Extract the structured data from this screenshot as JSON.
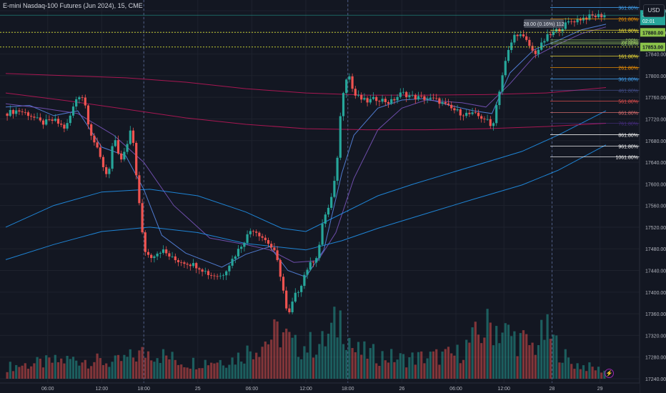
{
  "header": {
    "title": "E-mini Nasdaq-100 Futures (Jun 2024), 15, CME"
  },
  "currency_button": "USD",
  "price_tags": {
    "last_price": "17911.75",
    "countdown": "02:01",
    "line_a": "17880.00",
    "line_b": "17853.00",
    "measure": "28.00 (0.16%) 112"
  },
  "colors": {
    "background": "#131722",
    "grid": "#1e222d",
    "up_candle": "#26a69a",
    "down_candle": "#ef5350",
    "ma_fast": "#5b8def",
    "ma_mid": "#7e57c2",
    "ma_slow_blue": "#2196f3",
    "ma_slow_red": "#c2185b",
    "last_price_tag": "#26a69a",
    "dotted_level": "#c0ca33"
  },
  "chart_data": {
    "type": "candlestick",
    "title": "E-mini Nasdaq-100 Futures (Jun 2024), 15, CME",
    "yaxis": {
      "min": 17240,
      "max": 17920,
      "ticks": [
        17920,
        17880,
        17840,
        17800,
        17760,
        17720,
        17680,
        17640,
        17600,
        17560,
        17520,
        17480,
        17440,
        17400,
        17360,
        17320,
        17280,
        17240
      ]
    },
    "xaxis": {
      "range": [
        0,
        100
      ],
      "ticks": [
        {
          "x": 7,
          "label": "06:00"
        },
        {
          "x": 16,
          "label": "12:00"
        },
        {
          "x": 23,
          "label": "18:00"
        },
        {
          "x": 32,
          "label": "25"
        },
        {
          "x": 41,
          "label": "06:00"
        },
        {
          "x": 50,
          "label": "12:00"
        },
        {
          "x": 57,
          "label": "18:00"
        },
        {
          "x": 66,
          "label": "26"
        },
        {
          "x": 75,
          "label": "06:00"
        },
        {
          "x": 83,
          "label": "12:00"
        },
        {
          "x": 91,
          "label": "28"
        },
        {
          "x": 99,
          "label": "29"
        }
      ],
      "session_breaks": [
        23,
        57,
        91
      ]
    },
    "price_path": [
      [
        0,
        17730
      ],
      [
        2,
        17736
      ],
      [
        4,
        17728
      ],
      [
        6,
        17712
      ],
      [
        8,
        17718
      ],
      [
        10,
        17702
      ],
      [
        12,
        17765
      ],
      [
        13,
        17760
      ],
      [
        14,
        17700
      ],
      [
        16,
        17640
      ],
      [
        17,
        17612
      ],
      [
        18,
        17688
      ],
      [
        19,
        17640
      ],
      [
        20,
        17662
      ],
      [
        21,
        17705
      ],
      [
        22,
        17590
      ],
      [
        23,
        17480
      ],
      [
        24,
        17465
      ],
      [
        26,
        17478
      ],
      [
        28,
        17460
      ],
      [
        30,
        17455
      ],
      [
        32,
        17448
      ],
      [
        34,
        17432
      ],
      [
        36,
        17430
      ],
      [
        38,
        17465
      ],
      [
        40,
        17500
      ],
      [
        41,
        17518
      ],
      [
        42,
        17510
      ],
      [
        44,
        17488
      ],
      [
        45,
        17468
      ],
      [
        46,
        17420
      ],
      [
        47,
        17350
      ],
      [
        48,
        17390
      ],
      [
        49,
        17408
      ],
      [
        50,
        17440
      ],
      [
        52,
        17470
      ],
      [
        53,
        17540
      ],
      [
        54,
        17560
      ],
      [
        55,
        17615
      ],
      [
        56,
        17760
      ],
      [
        57,
        17810
      ],
      [
        58,
        17765
      ],
      [
        60,
        17752
      ],
      [
        62,
        17758
      ],
      [
        64,
        17750
      ],
      [
        66,
        17768
      ],
      [
        68,
        17760
      ],
      [
        70,
        17758
      ],
      [
        72,
        17754
      ],
      [
        74,
        17740
      ],
      [
        76,
        17730
      ],
      [
        78,
        17728
      ],
      [
        80,
        17720
      ],
      [
        81,
        17702
      ],
      [
        82,
        17760
      ],
      [
        83,
        17815
      ],
      [
        84,
        17855
      ],
      [
        85,
        17880
      ],
      [
        86,
        17872
      ],
      [
        87,
        17860
      ],
      [
        88,
        17840
      ],
      [
        89,
        17852
      ],
      [
        90,
        17870
      ],
      [
        92,
        17885
      ],
      [
        94,
        17900
      ],
      [
        96,
        17906
      ],
      [
        98,
        17910
      ],
      [
        100,
        17912
      ]
    ],
    "volume_path": [
      [
        0,
        0.15
      ],
      [
        12,
        0.25
      ],
      [
        18,
        0.2
      ],
      [
        24,
        0.35
      ],
      [
        30,
        0.2
      ],
      [
        38,
        0.25
      ],
      [
        46,
        0.6
      ],
      [
        48,
        0.4
      ],
      [
        53,
        0.45
      ],
      [
        56,
        0.8
      ],
      [
        58,
        0.35
      ],
      [
        66,
        0.25
      ],
      [
        75,
        0.3
      ],
      [
        81,
        0.7
      ],
      [
        84,
        0.55
      ],
      [
        88,
        0.4
      ],
      [
        90,
        0.6
      ],
      [
        94,
        0.2
      ],
      [
        100,
        0.1
      ]
    ],
    "series": [
      {
        "name": "",
        "color": "#5b8def",
        "points": [
          [
            0,
            17742
          ],
          [
            4,
            17745
          ],
          [
            8,
            17726
          ],
          [
            12,
            17735
          ],
          [
            16,
            17668
          ],
          [
            20,
            17652
          ],
          [
            23,
            17590
          ],
          [
            26,
            17505
          ],
          [
            30,
            17472
          ],
          [
            36,
            17446
          ],
          [
            40,
            17470
          ],
          [
            44,
            17484
          ],
          [
            47,
            17440
          ],
          [
            50,
            17428
          ],
          [
            53,
            17478
          ],
          [
            56,
            17620
          ],
          [
            58,
            17690
          ],
          [
            62,
            17740
          ],
          [
            66,
            17755
          ],
          [
            70,
            17758
          ],
          [
            74,
            17745
          ],
          [
            78,
            17735
          ],
          [
            81,
            17730
          ],
          [
            84,
            17805
          ],
          [
            88,
            17848
          ],
          [
            92,
            17865
          ],
          [
            96,
            17885
          ],
          [
            100,
            17895
          ]
        ]
      },
      {
        "name": "",
        "color": "#7e57c2",
        "points": [
          [
            0,
            17748
          ],
          [
            6,
            17740
          ],
          [
            12,
            17730
          ],
          [
            18,
            17690
          ],
          [
            23,
            17640
          ],
          [
            28,
            17560
          ],
          [
            34,
            17500
          ],
          [
            40,
            17488
          ],
          [
            44,
            17478
          ],
          [
            48,
            17455
          ],
          [
            52,
            17458
          ],
          [
            55,
            17510
          ],
          [
            58,
            17610
          ],
          [
            62,
            17700
          ],
          [
            66,
            17740
          ],
          [
            70,
            17755
          ],
          [
            76,
            17750
          ],
          [
            80,
            17742
          ],
          [
            84,
            17785
          ],
          [
            88,
            17835
          ],
          [
            92,
            17858
          ],
          [
            96,
            17878
          ],
          [
            100,
            17890
          ]
        ]
      },
      {
        "name": "",
        "color": "#2196f3",
        "points": [
          [
            0,
            17520
          ],
          [
            8,
            17560
          ],
          [
            16,
            17585
          ],
          [
            24,
            17590
          ],
          [
            32,
            17578
          ],
          [
            40,
            17548
          ],
          [
            46,
            17518
          ],
          [
            50,
            17512
          ],
          [
            56,
            17545
          ],
          [
            62,
            17578
          ],
          [
            68,
            17600
          ],
          [
            74,
            17620
          ],
          [
            80,
            17640
          ],
          [
            86,
            17660
          ],
          [
            92,
            17690
          ],
          [
            100,
            17735
          ]
        ]
      },
      {
        "name": "",
        "color": "#2196f3",
        "points": [
          [
            0,
            17460
          ],
          [
            8,
            17488
          ],
          [
            16,
            17512
          ],
          [
            24,
            17520
          ],
          [
            32,
            17510
          ],
          [
            40,
            17490
          ],
          [
            50,
            17478
          ],
          [
            56,
            17495
          ],
          [
            62,
            17518
          ],
          [
            70,
            17545
          ],
          [
            78,
            17572
          ],
          [
            86,
            17598
          ],
          [
            92,
            17625
          ],
          [
            100,
            17672
          ]
        ]
      },
      {
        "name": "",
        "color": "#c2185b",
        "points": [
          [
            0,
            17804
          ],
          [
            10,
            17800
          ],
          [
            20,
            17796
          ],
          [
            30,
            17788
          ],
          [
            40,
            17776
          ],
          [
            50,
            17768
          ],
          [
            60,
            17764
          ],
          [
            70,
            17764
          ],
          [
            80,
            17765
          ],
          [
            90,
            17768
          ],
          [
            100,
            17778
          ]
        ]
      },
      {
        "name": "",
        "color": "#c2185b",
        "points": [
          [
            0,
            17768
          ],
          [
            10,
            17754
          ],
          [
            20,
            17738
          ],
          [
            30,
            17722
          ],
          [
            40,
            17710
          ],
          [
            50,
            17702
          ],
          [
            60,
            17700
          ],
          [
            70,
            17700
          ],
          [
            80,
            17702
          ],
          [
            90,
            17706
          ],
          [
            100,
            17712
          ]
        ]
      }
    ],
    "fib_levels": [
      {
        "label": "461.80%",
        "price": 17946,
        "color": "#5c6bc0",
        "dim": true
      },
      {
        "label": "361.80%",
        "price": 17926,
        "color": "#42a5f5",
        "dim": false
      },
      {
        "label": "261.80%",
        "price": 17905,
        "color": "#ff9800",
        "dim": false
      },
      {
        "label": "161.80%",
        "price": 17884,
        "color": "#ffeb3b",
        "dim": false
      },
      {
        "label": "100%",
        "price": 17866,
        "color": "#9ccc65",
        "dim": false
      },
      {
        "label": "78.60%",
        "price": 17862,
        "color": "#9ccc65",
        "dim": false
      },
      {
        "label": "61.80%",
        "price": 17859,
        "color": "#9ccc65",
        "dim": false
      },
      {
        "label": "161.80%",
        "price": 17836,
        "color": "#ffeb3b",
        "dim": false
      },
      {
        "label": "261.80%",
        "price": 17815,
        "color": "#ff9800",
        "dim": false
      },
      {
        "label": "361.80%",
        "price": 17794,
        "color": "#42a5f5",
        "dim": false
      },
      {
        "label": "461.80%",
        "price": 17773,
        "color": "#5c6bc0",
        "dim": true
      },
      {
        "label": "561.80%",
        "price": 17753,
        "color": "#ef5350",
        "dim": false
      },
      {
        "label": "661.80%",
        "price": 17732,
        "color": "#e57373",
        "dim": false
      },
      {
        "label": "761.80%",
        "price": 17712,
        "color": "#673ab7",
        "dim": true
      },
      {
        "label": "861.80%",
        "price": 17691,
        "color": "#ffffff",
        "dim": false
      },
      {
        "label": "961.80%",
        "price": 17670,
        "color": "#ffffff",
        "dim": false
      },
      {
        "label": "1061.80%",
        "price": 17650,
        "color": "#ffffff",
        "dim": false
      }
    ]
  }
}
